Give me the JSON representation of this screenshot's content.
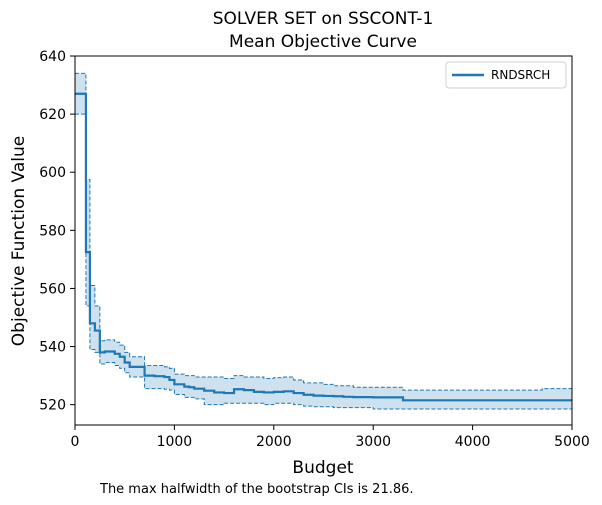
{
  "chart_data": {
    "type": "line",
    "title": [
      "SOLVER SET on SSCONT-1",
      "Mean Objective Curve"
    ],
    "xlabel": "Budget",
    "ylabel": "Objective Function Value",
    "xlim": [
      0,
      5000
    ],
    "ylim": [
      513,
      640
    ],
    "xticks": [
      0,
      1000,
      2000,
      3000,
      4000,
      5000
    ],
    "yticks": [
      520,
      540,
      560,
      580,
      600,
      620,
      640
    ],
    "grid": false,
    "legend_position": "top-right",
    "note": "The max halfwidth of the bootstrap CIs is 21.86.",
    "series": [
      {
        "name": "RNDSRCH",
        "color": "#1f77b4",
        "style": "step-post",
        "x": [
          0,
          100,
          110,
          150,
          200,
          250,
          300,
          400,
          450,
          500,
          550,
          700,
          800,
          900,
          950,
          1000,
          1100,
          1150,
          1200,
          1300,
          1400,
          1500,
          1600,
          1700,
          1800,
          1900,
          2000,
          2100,
          2200,
          2300,
          2400,
          2500,
          2600,
          2700,
          2800,
          3000,
          3300,
          3500,
          4000,
          4700,
          5000
        ],
        "values": [
          627,
          627,
          572.5,
          548,
          545.5,
          538,
          538.3,
          537.5,
          536.5,
          534.5,
          533,
          530,
          529.8,
          529.5,
          528.5,
          527,
          526.2,
          526,
          525.5,
          524.8,
          524.2,
          524,
          525.3,
          525,
          524.4,
          524.2,
          524.4,
          524.6,
          524,
          523.4,
          523.1,
          523,
          522.9,
          522.7,
          522.6,
          522.5,
          521.5,
          521.5,
          521.5,
          521.5,
          521.5
        ],
        "ci_lower": [
          620,
          620,
          554,
          539,
          538,
          534,
          534.5,
          533.5,
          532.5,
          531,
          529.5,
          525.5,
          525.5,
          525.3,
          525,
          523.5,
          522.5,
          522.5,
          522,
          520,
          520,
          520.5,
          520.5,
          520.5,
          520.5,
          520,
          520.5,
          520.5,
          520,
          519.5,
          519.3,
          519.3,
          519,
          519,
          519,
          518.5,
          518.5,
          518.5,
          518.5,
          518.5,
          518.5
        ],
        "ci_upper": [
          634,
          634,
          597.5,
          561,
          554,
          542,
          542.3,
          541.5,
          540.5,
          538,
          536.5,
          533.5,
          533.5,
          533,
          532.5,
          530.5,
          530,
          530,
          529.5,
          529.5,
          529.5,
          529,
          530,
          529.5,
          529.5,
          529,
          529.3,
          529.5,
          528.5,
          527.5,
          527.5,
          527,
          526.5,
          526.5,
          526,
          526,
          525,
          525,
          525,
          525.5,
          525.5
        ]
      }
    ]
  }
}
